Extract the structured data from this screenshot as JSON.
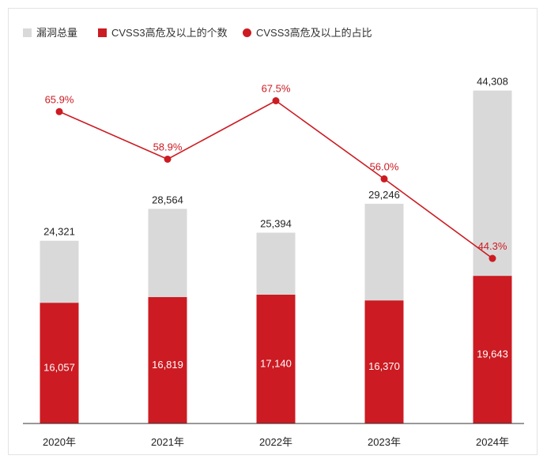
{
  "chart_data": {
    "type": "bar",
    "title": "",
    "xlabel": "",
    "ylabel": "",
    "categories": [
      "2020年",
      "2021年",
      "2022年",
      "2023年",
      "2024年"
    ],
    "series": [
      {
        "name": "漏洞总量",
        "type": "bar",
        "color": "#d9d9d9",
        "values": [
          24321,
          28564,
          25394,
          29246,
          44308
        ],
        "labels": [
          "24,321",
          "28,564",
          "25,394",
          "29,246",
          "44,308"
        ]
      },
      {
        "name": "CVSS3高危及以上的个数",
        "type": "bar",
        "color": "#cc1b22",
        "values": [
          16057,
          16819,
          17140,
          16370,
          19643
        ],
        "labels": [
          "16,057",
          "16,819",
          "17,140",
          "16,370",
          "19,643"
        ]
      },
      {
        "name": "CVSS3高危及以上的占比",
        "type": "line",
        "color": "#cc1b22",
        "values": [
          65.9,
          58.9,
          67.5,
          56.0,
          44.3
        ],
        "labels": [
          "65.9%",
          "58.9%",
          "67.5%",
          "56.0%",
          "44.3%"
        ]
      }
    ],
    "ylim": [
      0,
      49000
    ],
    "pct_ylim": [
      0,
      100
    ],
    "grid": false,
    "legend_position": "top-left"
  },
  "colors": {
    "total": "#d9d9d9",
    "high": "#cc1b22",
    "text": "#222222",
    "axis": "#333333"
  }
}
